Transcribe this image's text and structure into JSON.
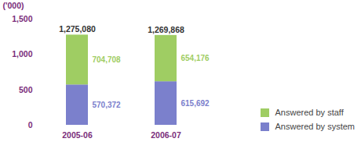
{
  "chart_data": {
    "type": "bar",
    "stacked": true,
    "data_labels": true,
    "legend": "bottom-right",
    "y_label": "('000)",
    "categories": [
      "2005-06",
      "2006-07"
    ],
    "series": [
      {
        "name": "Answered by system",
        "color": "#7b80cc",
        "values": [
          570.372,
          615.692
        ],
        "value_labels": [
          "570,372",
          "615,692"
        ]
      },
      {
        "name": "Answered by staff",
        "color": "#9fcd63",
        "values": [
          704.708,
          654.176
        ],
        "value_labels": [
          "704,708",
          "654,176"
        ]
      }
    ],
    "totals": [
      1275.08,
      1269.868
    ],
    "total_labels": [
      "1,275,080",
      "1,269,868"
    ],
    "ylim": [
      0,
      1500
    ],
    "yticks": [
      0,
      500,
      {
        "value": 1000,
        "label": "1,000"
      },
      {
        "value": 1500,
        "label": "1,500"
      }
    ]
  }
}
